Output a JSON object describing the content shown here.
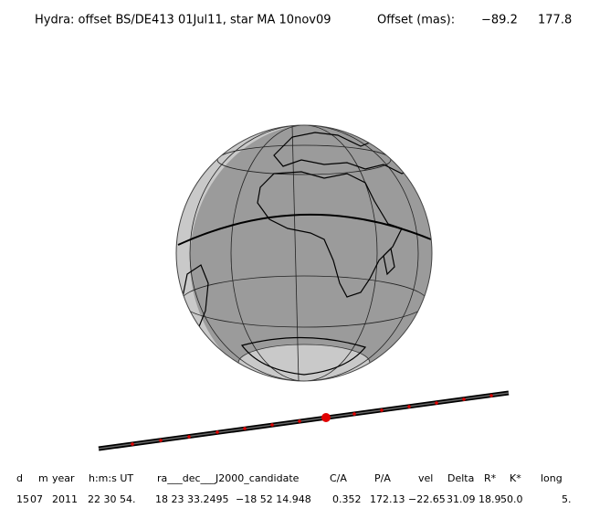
{
  "header": {
    "title": "Hydra: offset BS/DE413 01Jul11, star MA 10nov09",
    "offset_label": "Offset (mas):",
    "offset_values": [
      "−89.2",
      "177.8"
    ]
  },
  "table": {
    "columns": [
      "d",
      "m",
      "year",
      "h:m:s UT",
      "ra___dec___J2000_candidate",
      "C/A",
      "P/A",
      "vel",
      "Delta",
      "R*",
      "K*",
      "long"
    ],
    "rows": [
      [
        "15",
        "07",
        "2011",
        "22 30 54.",
        "18 23 33.2495",
        "−18 52 14.948",
        "0.352",
        "172.13",
        "−22.65",
        "31.09",
        "18.9",
        "50.0",
        "5."
      ]
    ]
  }
}
